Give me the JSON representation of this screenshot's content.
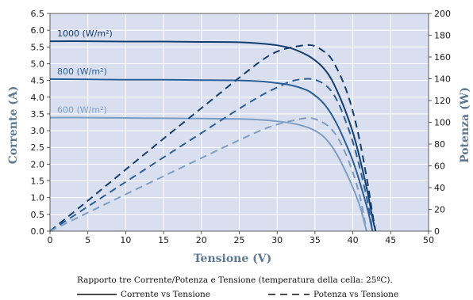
{
  "chart_data": {
    "type": "line",
    "xlabel": "Tensione (V)",
    "ylabel": "Corrente (A)",
    "y2label": "Potenza (W)",
    "xlim": [
      0,
      50
    ],
    "ylim": [
      0,
      6.5
    ],
    "y2lim": [
      0,
      200
    ],
    "x_ticks": [
      "0",
      "5",
      "10",
      "15",
      "20",
      "25",
      "30",
      "35",
      "40",
      "45",
      "50"
    ],
    "y_ticks": [
      "0.0",
      "0.5",
      "1.0",
      "1.5",
      "2.0",
      "2.5",
      "3.0",
      "3.5",
      "4.0",
      "4.5",
      "5.0",
      "5.5",
      "6.0",
      "6.5"
    ],
    "y2_ticks": [
      "0",
      "20",
      "40",
      "60",
      "80",
      "100",
      "120",
      "140",
      "160",
      "180",
      "200"
    ],
    "grid": true,
    "plot_background": "#d9dfee",
    "series": [
      {
        "name": "1000 (W/m²)",
        "axis": "current",
        "color": "#133e6e",
        "points": [
          [
            0,
            5.67
          ],
          [
            5,
            5.67
          ],
          [
            10,
            5.66
          ],
          [
            15,
            5.66
          ],
          [
            20,
            5.65
          ],
          [
            25,
            5.64
          ],
          [
            28,
            5.6
          ],
          [
            30,
            5.55
          ],
          [
            32,
            5.45
          ],
          [
            34,
            5.25
          ],
          [
            35,
            5.1
          ],
          [
            36,
            4.9
          ],
          [
            37,
            4.6
          ],
          [
            38,
            4.15
          ],
          [
            39,
            3.6
          ],
          [
            40,
            2.95
          ],
          [
            41,
            2.1
          ],
          [
            42,
            1.1
          ],
          [
            42.5,
            0.5
          ],
          [
            43,
            0
          ]
        ]
      },
      {
        "name": "800 (W/m²)",
        "axis": "current",
        "color": "#2b5f99",
        "points": [
          [
            0,
            4.54
          ],
          [
            5,
            4.53
          ],
          [
            10,
            4.52
          ],
          [
            15,
            4.52
          ],
          [
            20,
            4.51
          ],
          [
            25,
            4.5
          ],
          [
            28,
            4.47
          ],
          [
            30,
            4.42
          ],
          [
            32,
            4.35
          ],
          [
            34,
            4.2
          ],
          [
            35,
            4.05
          ],
          [
            36,
            3.85
          ],
          [
            37,
            3.55
          ],
          [
            38,
            3.15
          ],
          [
            39,
            2.65
          ],
          [
            40,
            2.1
          ],
          [
            41,
            1.4
          ],
          [
            42,
            0.6
          ],
          [
            42.6,
            0
          ]
        ]
      },
      {
        "name": "600 (W/m²)",
        "axis": "current",
        "color": "#7d9ec4",
        "points": [
          [
            0,
            3.39
          ],
          [
            5,
            3.39
          ],
          [
            10,
            3.38
          ],
          [
            15,
            3.37
          ],
          [
            20,
            3.36
          ],
          [
            25,
            3.35
          ],
          [
            28,
            3.32
          ],
          [
            30,
            3.28
          ],
          [
            32,
            3.22
          ],
          [
            34,
            3.1
          ],
          [
            35,
            3.0
          ],
          [
            36,
            2.85
          ],
          [
            37,
            2.6
          ],
          [
            38,
            2.25
          ],
          [
            39,
            1.8
          ],
          [
            40,
            1.3
          ],
          [
            41,
            0.7
          ],
          [
            41.8,
            0
          ]
        ]
      },
      {
        "name": "1000 (W/m²)",
        "axis": "power",
        "color": "#133e6e",
        "points": [
          [
            0,
            0
          ],
          [
            5,
            28
          ],
          [
            10,
            56.6
          ],
          [
            15,
            85
          ],
          [
            20,
            113
          ],
          [
            25,
            141
          ],
          [
            28,
            157
          ],
          [
            30,
            165
          ],
          [
            32,
            169
          ],
          [
            34,
            171
          ],
          [
            35,
            170
          ],
          [
            36,
            166
          ],
          [
            37,
            160
          ],
          [
            38,
            148
          ],
          [
            39,
            132
          ],
          [
            40,
            110
          ],
          [
            41,
            80
          ],
          [
            42,
            42
          ],
          [
            42.5,
            20
          ],
          [
            43,
            0
          ]
        ]
      },
      {
        "name": "800 (W/m²)",
        "axis": "power",
        "color": "#2b5f99",
        "points": [
          [
            0,
            0
          ],
          [
            5,
            22.6
          ],
          [
            10,
            45.2
          ],
          [
            15,
            67.8
          ],
          [
            20,
            90.2
          ],
          [
            25,
            112.5
          ],
          [
            28,
            125
          ],
          [
            30,
            132
          ],
          [
            32,
            138
          ],
          [
            34,
            140
          ],
          [
            35,
            139
          ],
          [
            36,
            136
          ],
          [
            37,
            130
          ],
          [
            38,
            119
          ],
          [
            39,
            102
          ],
          [
            40,
            82
          ],
          [
            41,
            56
          ],
          [
            42,
            25
          ],
          [
            42.6,
            0
          ]
        ]
      },
      {
        "name": "600 (W/m²)",
        "axis": "power",
        "color": "#7d9ec4",
        "points": [
          [
            0,
            0
          ],
          [
            5,
            17
          ],
          [
            10,
            33.8
          ],
          [
            15,
            50.5
          ],
          [
            20,
            67.2
          ],
          [
            25,
            83.7
          ],
          [
            28,
            93
          ],
          [
            30,
            98
          ],
          [
            32,
            101.5
          ],
          [
            34,
            104
          ],
          [
            35,
            103
          ],
          [
            36,
            100
          ],
          [
            37,
            95
          ],
          [
            38,
            86
          ],
          [
            39,
            72
          ],
          [
            40,
            54
          ],
          [
            41,
            30
          ],
          [
            41.8,
            0
          ]
        ]
      }
    ],
    "caption": "Rapporto tre Corrente/Potenza e Tensione (temperatura della cella: 25ºC).",
    "legend": [
      {
        "label": "Corrente vs Tensione",
        "style": "solid"
      },
      {
        "label": "Potenza vs Tensione",
        "style": "dashed"
      }
    ]
  }
}
